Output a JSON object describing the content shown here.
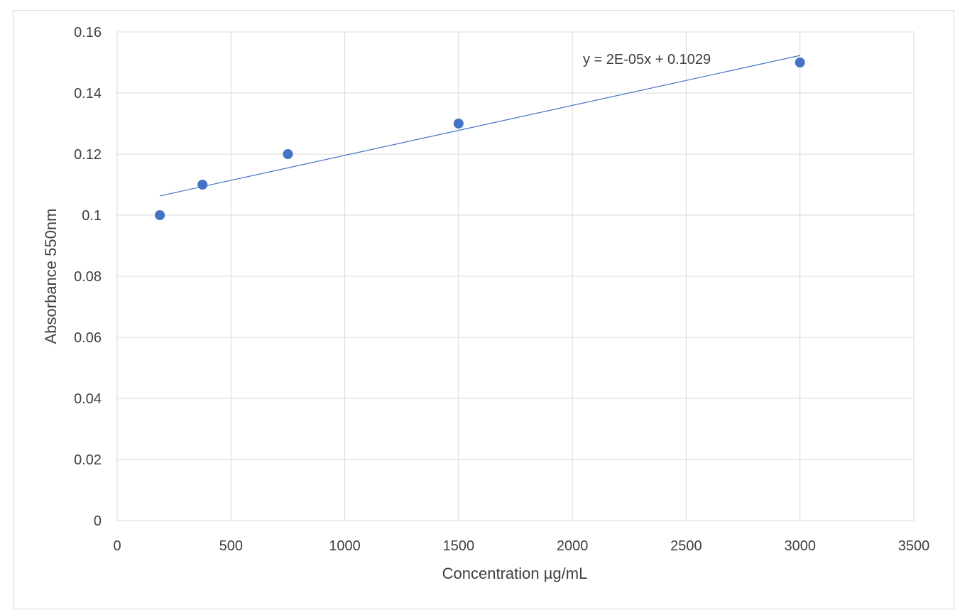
{
  "chart_data": {
    "type": "scatter",
    "title": "",
    "xlabel": "Concentration µg/mL",
    "ylabel": "Absorbance 550nm",
    "xlim": [
      0,
      3500
    ],
    "ylim": [
      0,
      0.16
    ],
    "x_ticks": [
      "0",
      "500",
      "1000",
      "1500",
      "2000",
      "2500",
      "3000",
      "3500"
    ],
    "y_ticks": [
      "0",
      "0.02",
      "0.04",
      "0.06",
      "0.08",
      "0.1",
      "0.12",
      "0.14",
      "0.16"
    ],
    "grid": true,
    "legend": "none",
    "series": [
      {
        "x": [
          187.5,
          375,
          750,
          1500,
          3000
        ],
        "y": [
          0.1,
          0.11,
          0.12,
          0.13,
          0.15
        ],
        "color": "#4472C4"
      }
    ],
    "trendline": {
      "type": "linear",
      "equation": "y = 2E-05x + 0.1029",
      "x_range": [
        187.5,
        3000
      ],
      "y_range": [
        0.1063,
        0.1523
      ],
      "color": "#4472C4"
    }
  }
}
